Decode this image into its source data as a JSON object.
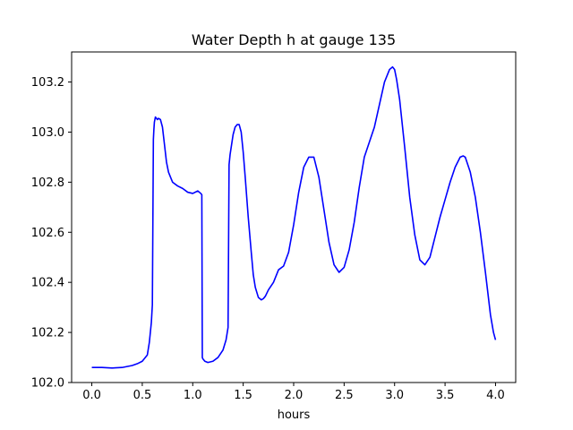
{
  "chart_data": {
    "type": "line",
    "title": "Water Depth h at gauge 135",
    "xlabel": "hours",
    "ylabel": "",
    "xlim": [
      -0.2,
      4.2
    ],
    "ylim": [
      102.0,
      103.32
    ],
    "xticks": [
      0.0,
      0.5,
      1.0,
      1.5,
      2.0,
      2.5,
      3.0,
      3.5,
      4.0
    ],
    "xtick_labels": [
      "0.0",
      "0.5",
      "1.0",
      "1.5",
      "2.0",
      "2.5",
      "3.0",
      "3.5",
      "4.0"
    ],
    "yticks": [
      102.0,
      102.2,
      102.4,
      102.6,
      102.8,
      103.0,
      103.2
    ],
    "ytick_labels": [
      "102.0",
      "102.2",
      "102.4",
      "102.6",
      "102.8",
      "103.0",
      "103.2"
    ],
    "grid": false,
    "series": [
      {
        "color": "#0000ff",
        "x": [
          0.0,
          0.1,
          0.2,
          0.3,
          0.4,
          0.45,
          0.5,
          0.55,
          0.57,
          0.59,
          0.6,
          0.61,
          0.615,
          0.62,
          0.63,
          0.65,
          0.66,
          0.68,
          0.7,
          0.72,
          0.74,
          0.76,
          0.78,
          0.8,
          0.85,
          0.9,
          0.95,
          1.0,
          1.05,
          1.08,
          1.09,
          1.095,
          1.1,
          1.12,
          1.15,
          1.2,
          1.25,
          1.3,
          1.33,
          1.35,
          1.36,
          1.37,
          1.4,
          1.42,
          1.44,
          1.46,
          1.48,
          1.5,
          1.52,
          1.55,
          1.58,
          1.6,
          1.62,
          1.65,
          1.68,
          1.7,
          1.72,
          1.75,
          1.8,
          1.85,
          1.9,
          1.95,
          2.0,
          2.05,
          2.1,
          2.15,
          2.2,
          2.25,
          2.3,
          2.35,
          2.4,
          2.45,
          2.5,
          2.55,
          2.6,
          2.65,
          2.7,
          2.75,
          2.8,
          2.85,
          2.9,
          2.95,
          2.98,
          3.0,
          3.02,
          3.05,
          3.1,
          3.15,
          3.2,
          3.25,
          3.3,
          3.35,
          3.4,
          3.45,
          3.5,
          3.55,
          3.6,
          3.65,
          3.68,
          3.7,
          3.75,
          3.8,
          3.85,
          3.9,
          3.95,
          3.98,
          4.0
        ],
        "y": [
          102.06,
          102.06,
          102.058,
          102.06,
          102.068,
          102.075,
          102.085,
          102.11,
          102.16,
          102.24,
          102.31,
          102.97,
          103.01,
          103.04,
          103.06,
          103.05,
          103.055,
          103.05,
          103.02,
          102.95,
          102.88,
          102.84,
          102.82,
          102.8,
          102.785,
          102.775,
          102.76,
          102.755,
          102.765,
          102.755,
          102.75,
          102.1,
          102.095,
          102.085,
          102.08,
          102.085,
          102.1,
          102.13,
          102.17,
          102.22,
          102.87,
          102.91,
          102.99,
          103.02,
          103.03,
          103.03,
          103.0,
          102.92,
          102.82,
          102.66,
          102.52,
          102.43,
          102.38,
          102.34,
          102.33,
          102.335,
          102.345,
          102.37,
          102.4,
          102.45,
          102.465,
          102.52,
          102.63,
          102.76,
          102.86,
          102.9,
          102.9,
          102.82,
          102.69,
          102.56,
          102.47,
          102.44,
          102.46,
          102.53,
          102.64,
          102.78,
          102.9,
          102.96,
          103.02,
          103.11,
          103.2,
          103.25,
          103.26,
          103.25,
          103.21,
          103.13,
          102.94,
          102.74,
          102.59,
          102.49,
          102.47,
          102.5,
          102.58,
          102.66,
          102.73,
          102.8,
          102.86,
          102.9,
          102.905,
          102.9,
          102.84,
          102.74,
          102.6,
          102.44,
          102.27,
          102.2,
          102.17
        ]
      }
    ]
  }
}
